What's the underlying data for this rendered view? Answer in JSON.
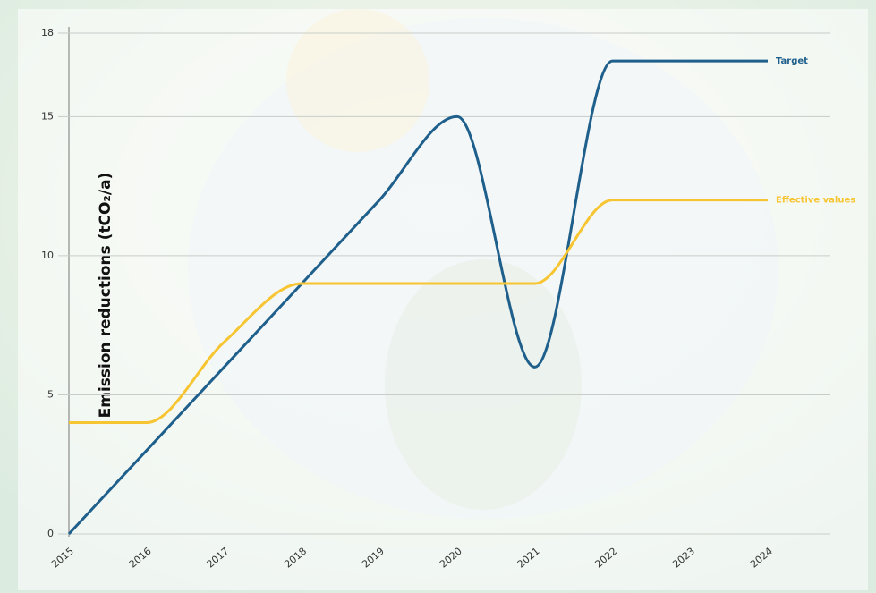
{
  "chart_data": {
    "type": "line",
    "y_label": "Emission reductions (tCO₂/a)",
    "x": [
      "2015",
      "2016",
      "2017",
      "2018",
      "2019",
      "2020",
      "2021",
      "2022",
      "2023",
      "2024"
    ],
    "series": [
      {
        "name": "Target",
        "color": "#1f5f8b",
        "values": [
          0,
          3,
          6,
          9,
          12,
          15,
          6,
          17,
          17,
          17
        ]
      },
      {
        "name": "Effective values",
        "color": "#f6c531",
        "values": [
          4,
          4,
          6.9,
          9,
          9,
          9,
          9,
          12,
          12,
          12
        ]
      }
    ],
    "ylim": [
      0,
      18
    ],
    "yticks": [
      0,
      5,
      10,
      15,
      18
    ],
    "grid": true
  }
}
